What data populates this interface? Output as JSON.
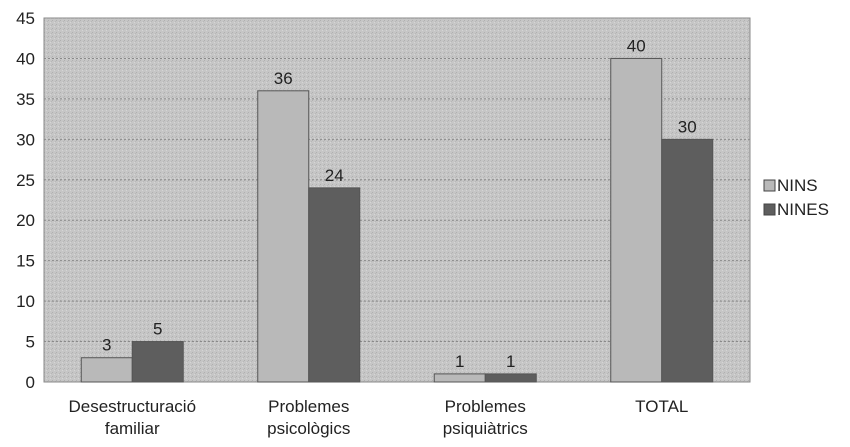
{
  "chart_data": {
    "type": "bar",
    "title": "",
    "xlabel": "",
    "ylabel": "",
    "categories": [
      [
        "Desestructuració",
        "familiar"
      ],
      [
        "Problemes",
        "psicològics"
      ],
      [
        "Problemes",
        "psiquiàtrics"
      ],
      [
        "TOTAL"
      ]
    ],
    "series": [
      {
        "name": "NINS",
        "values": [
          3,
          36,
          1,
          40
        ],
        "color": "#b9b9b9"
      },
      {
        "name": "NINES",
        "values": [
          5,
          24,
          1,
          30
        ],
        "color": "#5e5e5e"
      }
    ],
    "ylim": [
      0,
      45
    ],
    "yticks": [
      0,
      5,
      10,
      15,
      20,
      25,
      30,
      35,
      40,
      45
    ],
    "grid": true,
    "legend_position": "right",
    "plot_background": "#c6c6c6"
  }
}
